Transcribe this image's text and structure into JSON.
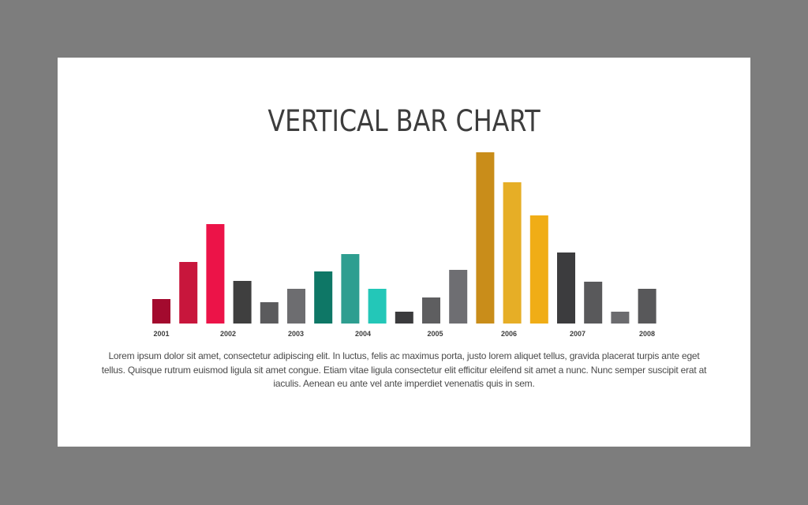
{
  "chart_data": {
    "type": "bar",
    "title": "VERTICAL BAR CHART",
    "categories": [
      "2001",
      "2002",
      "2003",
      "2004",
      "2005",
      "2006",
      "2007",
      "2008"
    ],
    "bars": [
      {
        "value": 31,
        "color": "#a30a2e"
      },
      {
        "value": 78,
        "color": "#c8163c"
      },
      {
        "value": 126,
        "color": "#ec1348"
      },
      {
        "value": 54,
        "color": "#3f3f3f"
      },
      {
        "value": 27,
        "color": "#5b5b5d"
      },
      {
        "value": 44,
        "color": "#6d6d70"
      },
      {
        "value": 66,
        "color": "#0e7766"
      },
      {
        "value": 88,
        "color": "#2e9e90"
      },
      {
        "value": 44,
        "color": "#23c7b8"
      },
      {
        "value": 15,
        "color": "#3b3b3d"
      },
      {
        "value": 33,
        "color": "#5e5e60"
      },
      {
        "value": 68,
        "color": "#6e6e72"
      },
      {
        "value": 217,
        "color": "#c98d1a"
      },
      {
        "value": 179,
        "color": "#e6ae26"
      },
      {
        "value": 137,
        "color": "#f0ad16"
      },
      {
        "value": 90,
        "color": "#3c3c3e"
      },
      {
        "value": 53,
        "color": "#59595b"
      },
      {
        "value": 15,
        "color": "#6b6b6e"
      },
      {
        "value": 44,
        "color": "#58585a"
      }
    ],
    "ylim": [
      0,
      217
    ],
    "grid": false,
    "legend": "none"
  },
  "description": "Lorem ipsum dolor sit amet, consectetur adipiscing elit. In luctus, felis ac maximus porta, justo lorem aliquet tellus, gravida placerat turpis ante eget tellus. Quisque rutrum euismod ligula sit amet congue. Etiam vitae ligula consectetur elit efficitur eleifend sit amet a nunc. Nunc semper suscipit erat at iaculis. Aenean eu ante vel ante imperdiet venenatis quis in sem."
}
